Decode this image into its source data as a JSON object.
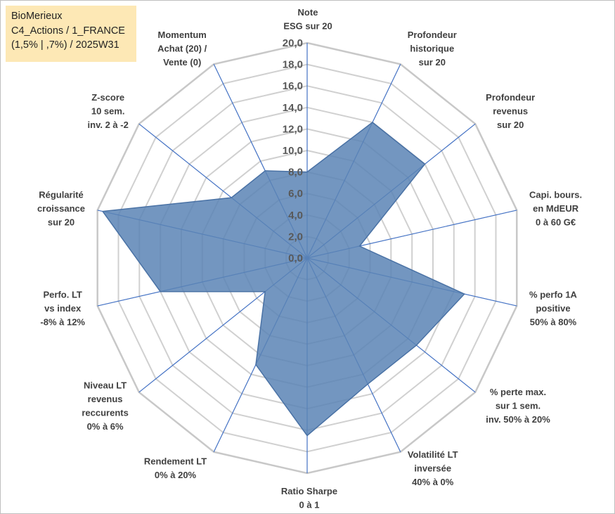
{
  "title_box": {
    "line1": "BioMerieux",
    "line2": "C4_Actions / 1_FRANCE",
    "line3": "(1,5% | ,7%) / 2025W31",
    "background": "#fde8b5"
  },
  "chart_data": {
    "type": "radar",
    "series": [
      {
        "name": "",
        "values": [
          8.0,
          14.0,
          14.0,
          5.0,
          15.0,
          13.0,
          13.0,
          16.5,
          11.0,
          5.0,
          14.0,
          19.5,
          9.0,
          9.0
        ]
      }
    ],
    "categories": [
      [
        "Note",
        "ESG sur 20"
      ],
      [
        "Profondeur",
        "historique",
        "sur 20"
      ],
      [
        "Profondeur",
        "revenus",
        "sur 20"
      ],
      [
        "Capi. bours.",
        "en MdEUR",
        "0 à 60 G€"
      ],
      [
        "% perfo 1A",
        "positive",
        "50% à 80%"
      ],
      [
        "% perte max.",
        "sur 1 sem.",
        "inv. 50% à 20%"
      ],
      [
        "Volatilité LT",
        "inversée",
        "40% à 0%"
      ],
      [
        "Ratio Sharpe",
        "0 à 1"
      ],
      [
        "Rendement LT",
        "0% à 20%"
      ],
      [
        "Niveau LT",
        "revenus",
        "reccurents",
        "0% à 6%"
      ],
      [
        "Perfo. LT",
        "vs index",
        "-8% à 12%"
      ],
      [
        "Régularité",
        "croissance",
        "sur 20"
      ],
      [
        "Z-score",
        "10 sem.",
        "inv. 2 à -2"
      ],
      [
        "Momentum",
        "Achat (20) /",
        "Vente (0)"
      ]
    ],
    "tick_labels": [
      "0,0",
      "2,0",
      "4,0",
      "6,0",
      "8,0",
      "10,0",
      "12,0",
      "14,0",
      "16,0",
      "18,0",
      "20,0"
    ],
    "rlim": [
      0,
      20
    ],
    "tick_step": 2,
    "grid": true,
    "legend": "none",
    "colors": {
      "fill": "#5b84b5",
      "stroke": "#4a72a5",
      "axis": "#4472c4",
      "grid": "#d0d0d0"
    }
  }
}
